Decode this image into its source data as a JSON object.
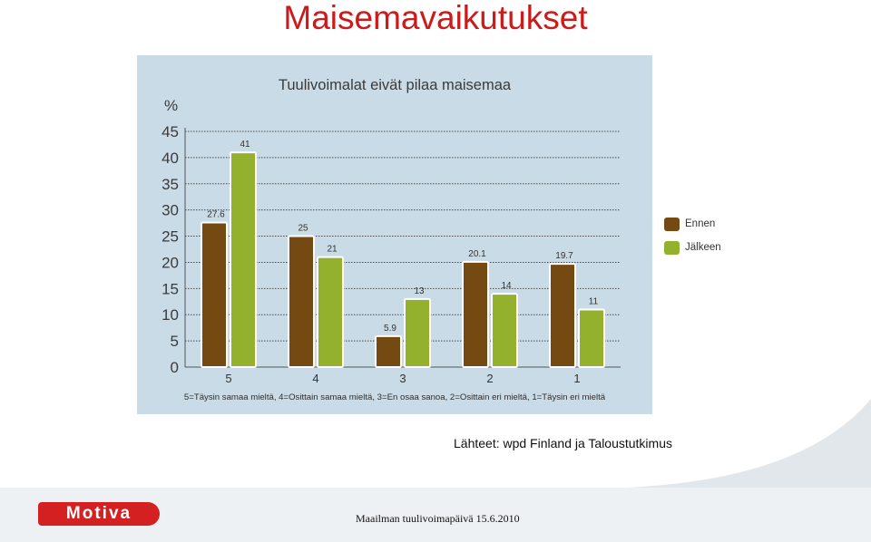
{
  "slide": {
    "title": "Maisemavaikutukset",
    "source": "Lähteet: wpd Finland ja Taloustutkimus",
    "footer_text": "Maailman tuulivoimapäivä 15.6.2010",
    "logo_text": "Motiva"
  },
  "colors": {
    "ennen": "#744a12",
    "jalkeen": "#94b12e",
    "panel": "#c9dbe6",
    "title": "#cc1a1a"
  },
  "chart_data": {
    "type": "bar",
    "title": "Tuulivoimalat eivät pilaa maisemaa",
    "ylabel": "%",
    "xlabel": "",
    "ylim": [
      0,
      45
    ],
    "yticks": [
      0,
      5,
      10,
      15,
      20,
      25,
      30,
      35,
      40,
      45
    ],
    "categories": [
      "5",
      "4",
      "3",
      "2",
      "1"
    ],
    "series": [
      {
        "name": "Ennen",
        "values": [
          27.6,
          25,
          5.9,
          20.1,
          19.7
        ],
        "labels": [
          "27.6",
          "25",
          "5.9",
          "20.1",
          "19.7"
        ]
      },
      {
        "name": "Jälkeen",
        "values": [
          41,
          21,
          13,
          14,
          11
        ],
        "labels": [
          "41",
          "21",
          "13",
          "14",
          "11"
        ]
      }
    ],
    "legend_position": "right",
    "grid": true,
    "footnote": "5=Täysin samaa mieltä, 4=Osittain samaa mieltä, 3=En osaa sanoa, 2=Osittain eri mieltä, 1=Täysin eri mieltä"
  }
}
